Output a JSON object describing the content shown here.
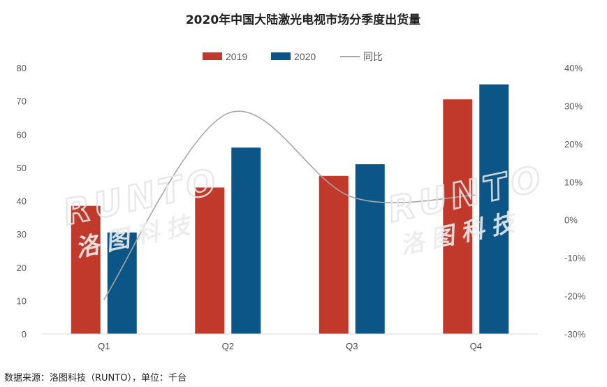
{
  "chart_data": {
    "type": "bar",
    "title": "2020年中国大陆激光电视市场分季度出货量",
    "categories": [
      "Q1",
      "Q2",
      "Q3",
      "Q4"
    ],
    "series": [
      {
        "name": "2019",
        "type": "bar",
        "axis": "left",
        "color": "#c0392b",
        "values": [
          38.5,
          44,
          47.5,
          70.5
        ]
      },
      {
        "name": "2020",
        "type": "bar",
        "axis": "left",
        "color": "#0b5587",
        "values": [
          30.5,
          56,
          51,
          75
        ]
      },
      {
        "name": "同比",
        "type": "line",
        "axis": "right",
        "smooth": true,
        "color": "#a6a6a6",
        "values": [
          -21,
          28,
          6,
          6.5
        ]
      }
    ],
    "y_left": {
      "min": 0,
      "max": 80,
      "step": 10,
      "ticks": [
        "0",
        "10",
        "20",
        "30",
        "40",
        "50",
        "60",
        "70",
        "80"
      ]
    },
    "y_right": {
      "min": -30,
      "max": 40,
      "step": 10,
      "ticks": [
        "-30%",
        "-20%",
        "-10%",
        "0%",
        "10%",
        "20%",
        "30%",
        "40%"
      ]
    },
    "legend_position": "top-center",
    "grid": false
  },
  "watermark": {
    "latin": "RUNTO",
    "chinese": "洛图科技"
  },
  "footer": {
    "source": "数据来源：洛图科技（RUNTO），单位：千台"
  }
}
